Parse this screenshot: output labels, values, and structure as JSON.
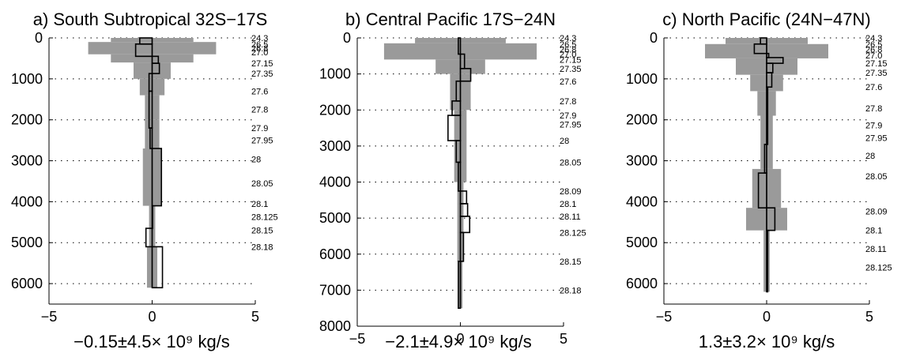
{
  "colors": {
    "uncertainty_fill": "#9a9a9a",
    "transport_line": "#000000",
    "background": "#ffffff"
  },
  "chart_data": [
    {
      "type": "bar",
      "orientation": "horizontal",
      "title": "a) South Subtropical 32S−17S",
      "xlabel": "−0.15±4.5× 10⁹ kg/s",
      "xlim": [
        -5,
        5
      ],
      "ylim": [
        0,
        6500
      ],
      "y_inverted": true,
      "grid": "dotted",
      "x_ticks": [
        "−5",
        "0",
        "5"
      ],
      "y_ticks": [
        "0",
        "1000",
        "2000",
        "3000",
        "4000",
        "5000",
        "6000"
      ],
      "density_labels": [
        {
          "text": "24.3",
          "depth": 0
        },
        {
          "text": "26.5",
          "depth": 150
        },
        {
          "text": "26.8",
          "depth": 250
        },
        {
          "text": "27.0",
          "depth": 350
        },
        {
          "text": "27.15",
          "depth": 620
        },
        {
          "text": "27.35",
          "depth": 870
        },
        {
          "text": "27.6",
          "depth": 1300
        },
        {
          "text": "27.8",
          "depth": 1750
        },
        {
          "text": "27.9",
          "depth": 2200
        },
        {
          "text": "27.95",
          "depth": 2500
        },
        {
          "text": "28",
          "depth": 2960
        },
        {
          "text": "28.05",
          "depth": 3550
        },
        {
          "text": "28.1",
          "depth": 4050
        },
        {
          "text": "28.125",
          "depth": 4370
        },
        {
          "text": "28.15",
          "depth": 4700
        },
        {
          "text": "28.18",
          "depth": 5100
        }
      ],
      "uncertainty_bins": [
        {
          "top": 0,
          "bottom": 100,
          "min": -2.0,
          "max": 2.0
        },
        {
          "top": 100,
          "bottom": 400,
          "min": -3.1,
          "max": 3.1
        },
        {
          "top": 400,
          "bottom": 600,
          "min": -2.0,
          "max": 2.0
        },
        {
          "top": 600,
          "bottom": 1000,
          "min": -0.9,
          "max": 0.9
        },
        {
          "top": 1000,
          "bottom": 1400,
          "min": -0.6,
          "max": 0.6
        },
        {
          "top": 1400,
          "bottom": 2000,
          "min": -0.35,
          "max": 0.35
        },
        {
          "top": 2000,
          "bottom": 2700,
          "min": -0.35,
          "max": 0.35
        },
        {
          "top": 2700,
          "bottom": 4100,
          "min": -0.45,
          "max": 0.45
        },
        {
          "top": 4100,
          "bottom": 5100,
          "min": -0.15,
          "max": 0.15
        },
        {
          "top": 5100,
          "bottom": 6100,
          "min": -0.25,
          "max": 0.25
        }
      ],
      "transport_bins": [
        {
          "top": 0,
          "bottom": 150,
          "value": -0.6
        },
        {
          "top": 150,
          "bottom": 450,
          "value": -0.8
        },
        {
          "top": 450,
          "bottom": 620,
          "value": 0.3
        },
        {
          "top": 620,
          "bottom": 870,
          "value": 0.35
        },
        {
          "top": 870,
          "bottom": 1300,
          "value": -0.15
        },
        {
          "top": 1300,
          "bottom": 2200,
          "value": -0.15
        },
        {
          "top": 2200,
          "bottom": 2700,
          "value": -0.1
        },
        {
          "top": 2700,
          "bottom": 4100,
          "value": 0.45
        },
        {
          "top": 4100,
          "bottom": 4650,
          "value": 0.0
        },
        {
          "top": 4650,
          "bottom": 5100,
          "value": -0.3
        },
        {
          "top": 5100,
          "bottom": 6100,
          "value": 0.5
        }
      ]
    },
    {
      "type": "bar",
      "orientation": "horizontal",
      "title": "b) Central Pacific 17S−24N",
      "xlabel": "−2.1±4.9× 10⁹ kg/s",
      "xlim": [
        -5,
        5
      ],
      "ylim": [
        0,
        8000
      ],
      "y_inverted": true,
      "grid": "dotted",
      "x_ticks": [
        "−5",
        "0",
        "5"
      ],
      "y_ticks": [
        "0",
        "1000",
        "2000",
        "3000",
        "4000",
        "5000",
        "6000",
        "7000",
        "8000"
      ],
      "density_labels": [
        {
          "text": "24.3",
          "depth": 0
        },
        {
          "text": "26.5",
          "depth": 180
        },
        {
          "text": "26.8",
          "depth": 320
        },
        {
          "text": "27.0",
          "depth": 450
        },
        {
          "text": "27.15",
          "depth": 600
        },
        {
          "text": "27.35",
          "depth": 850
        },
        {
          "text": "27.6",
          "depth": 1200
        },
        {
          "text": "27.8",
          "depth": 1750
        },
        {
          "text": "27.9",
          "depth": 2150
        },
        {
          "text": "27.95",
          "depth": 2400
        },
        {
          "text": "28",
          "depth": 2850
        },
        {
          "text": "28.05",
          "depth": 3450
        },
        {
          "text": "28.09",
          "depth": 4250
        },
        {
          "text": "28.1",
          "depth": 4600
        },
        {
          "text": "28.11",
          "depth": 4950
        },
        {
          "text": "28.125",
          "depth": 5400
        },
        {
          "text": "28.15",
          "depth": 6200
        },
        {
          "text": "28.18",
          "depth": 7000
        }
      ],
      "uncertainty_bins": [
        {
          "top": 0,
          "bottom": 150,
          "min": -2.2,
          "max": 2.2
        },
        {
          "top": 150,
          "bottom": 600,
          "min": -3.7,
          "max": 3.7
        },
        {
          "top": 600,
          "bottom": 1000,
          "min": -1.2,
          "max": 1.2
        },
        {
          "top": 1000,
          "bottom": 2000,
          "min": -0.5,
          "max": 0.5
        },
        {
          "top": 2000,
          "bottom": 4000,
          "min": -0.3,
          "max": 0.3
        },
        {
          "top": 4000,
          "bottom": 6200,
          "min": -0.15,
          "max": 0.15
        },
        {
          "top": 6200,
          "bottom": 7500,
          "min": -0.1,
          "max": 0.1
        }
      ],
      "transport_bins": [
        {
          "top": 0,
          "bottom": 450,
          "value": -0.1
        },
        {
          "top": 450,
          "bottom": 850,
          "value": 0.2
        },
        {
          "top": 850,
          "bottom": 1200,
          "value": 0.5
        },
        {
          "top": 1200,
          "bottom": 1750,
          "value": -0.2
        },
        {
          "top": 1750,
          "bottom": 2150,
          "value": -0.4
        },
        {
          "top": 2150,
          "bottom": 2850,
          "value": -0.6
        },
        {
          "top": 2850,
          "bottom": 3450,
          "value": -0.2
        },
        {
          "top": 3450,
          "bottom": 4250,
          "value": -0.1
        },
        {
          "top": 4250,
          "bottom": 4600,
          "value": 0.3
        },
        {
          "top": 4600,
          "bottom": 4950,
          "value": 0.35
        },
        {
          "top": 4950,
          "bottom": 5400,
          "value": 0.45
        },
        {
          "top": 5400,
          "bottom": 6200,
          "value": 0.15
        },
        {
          "top": 6200,
          "bottom": 7500,
          "value": -0.1
        }
      ]
    },
    {
      "type": "bar",
      "orientation": "horizontal",
      "title": "c) North Pacific (24N−47N)",
      "xlabel": "1.3±3.2× 10⁹ kg/s",
      "xlim": [
        -5,
        5
      ],
      "ylim": [
        0,
        6500
      ],
      "y_inverted": true,
      "grid": "dotted",
      "x_ticks": [
        "−5",
        "0",
        "5"
      ],
      "y_ticks": [
        "0",
        "1000",
        "2000",
        "3000",
        "4000",
        "5000",
        "6000"
      ],
      "density_labels": [
        {
          "text": "24.3",
          "depth": 0
        },
        {
          "text": "26.5",
          "depth": 150
        },
        {
          "text": "26.8",
          "depth": 280
        },
        {
          "text": "27.0",
          "depth": 420
        },
        {
          "text": "27.15",
          "depth": 620
        },
        {
          "text": "27.35",
          "depth": 850
        },
        {
          "text": "27.6",
          "depth": 1200
        },
        {
          "text": "27.8",
          "depth": 1720
        },
        {
          "text": "27.9",
          "depth": 2130
        },
        {
          "text": "27.95",
          "depth": 2440
        },
        {
          "text": "28",
          "depth": 2870
        },
        {
          "text": "28.05",
          "depth": 3380
        },
        {
          "text": "28.09",
          "depth": 4230
        },
        {
          "text": "28.1",
          "depth": 4700
        },
        {
          "text": "28.11",
          "depth": 5150
        },
        {
          "text": "28.125",
          "depth": 5600
        }
      ],
      "uncertainty_bins": [
        {
          "top": 0,
          "bottom": 150,
          "min": -2.0,
          "max": 2.0
        },
        {
          "top": 150,
          "bottom": 500,
          "min": -3.0,
          "max": 3.0
        },
        {
          "top": 500,
          "bottom": 900,
          "min": -1.5,
          "max": 1.5
        },
        {
          "top": 900,
          "bottom": 1300,
          "min": -0.8,
          "max": 0.8
        },
        {
          "top": 1300,
          "bottom": 1900,
          "min": -0.45,
          "max": 0.45
        },
        {
          "top": 1900,
          "bottom": 3200,
          "min": -0.3,
          "max": 0.3
        },
        {
          "top": 3200,
          "bottom": 4150,
          "min": -0.7,
          "max": 0.7
        },
        {
          "top": 4150,
          "bottom": 4700,
          "min": -1.0,
          "max": 1.0
        },
        {
          "top": 4700,
          "bottom": 6200,
          "min": -0.15,
          "max": 0.15
        }
      ],
      "transport_bins": [
        {
          "top": 0,
          "bottom": 150,
          "value": -0.3
        },
        {
          "top": 150,
          "bottom": 380,
          "value": -0.6
        },
        {
          "top": 380,
          "bottom": 480,
          "value": 0.1
        },
        {
          "top": 480,
          "bottom": 620,
          "value": 0.8
        },
        {
          "top": 620,
          "bottom": 850,
          "value": 0.3
        },
        {
          "top": 850,
          "bottom": 1200,
          "value": 0.25
        },
        {
          "top": 1200,
          "bottom": 2600,
          "value": 0.05
        },
        {
          "top": 2600,
          "bottom": 3300,
          "value": -0.1
        },
        {
          "top": 3300,
          "bottom": 4150,
          "value": -0.4
        },
        {
          "top": 4150,
          "bottom": 4700,
          "value": 0.4
        },
        {
          "top": 4700,
          "bottom": 6200,
          "value": 0.05
        }
      ]
    }
  ]
}
